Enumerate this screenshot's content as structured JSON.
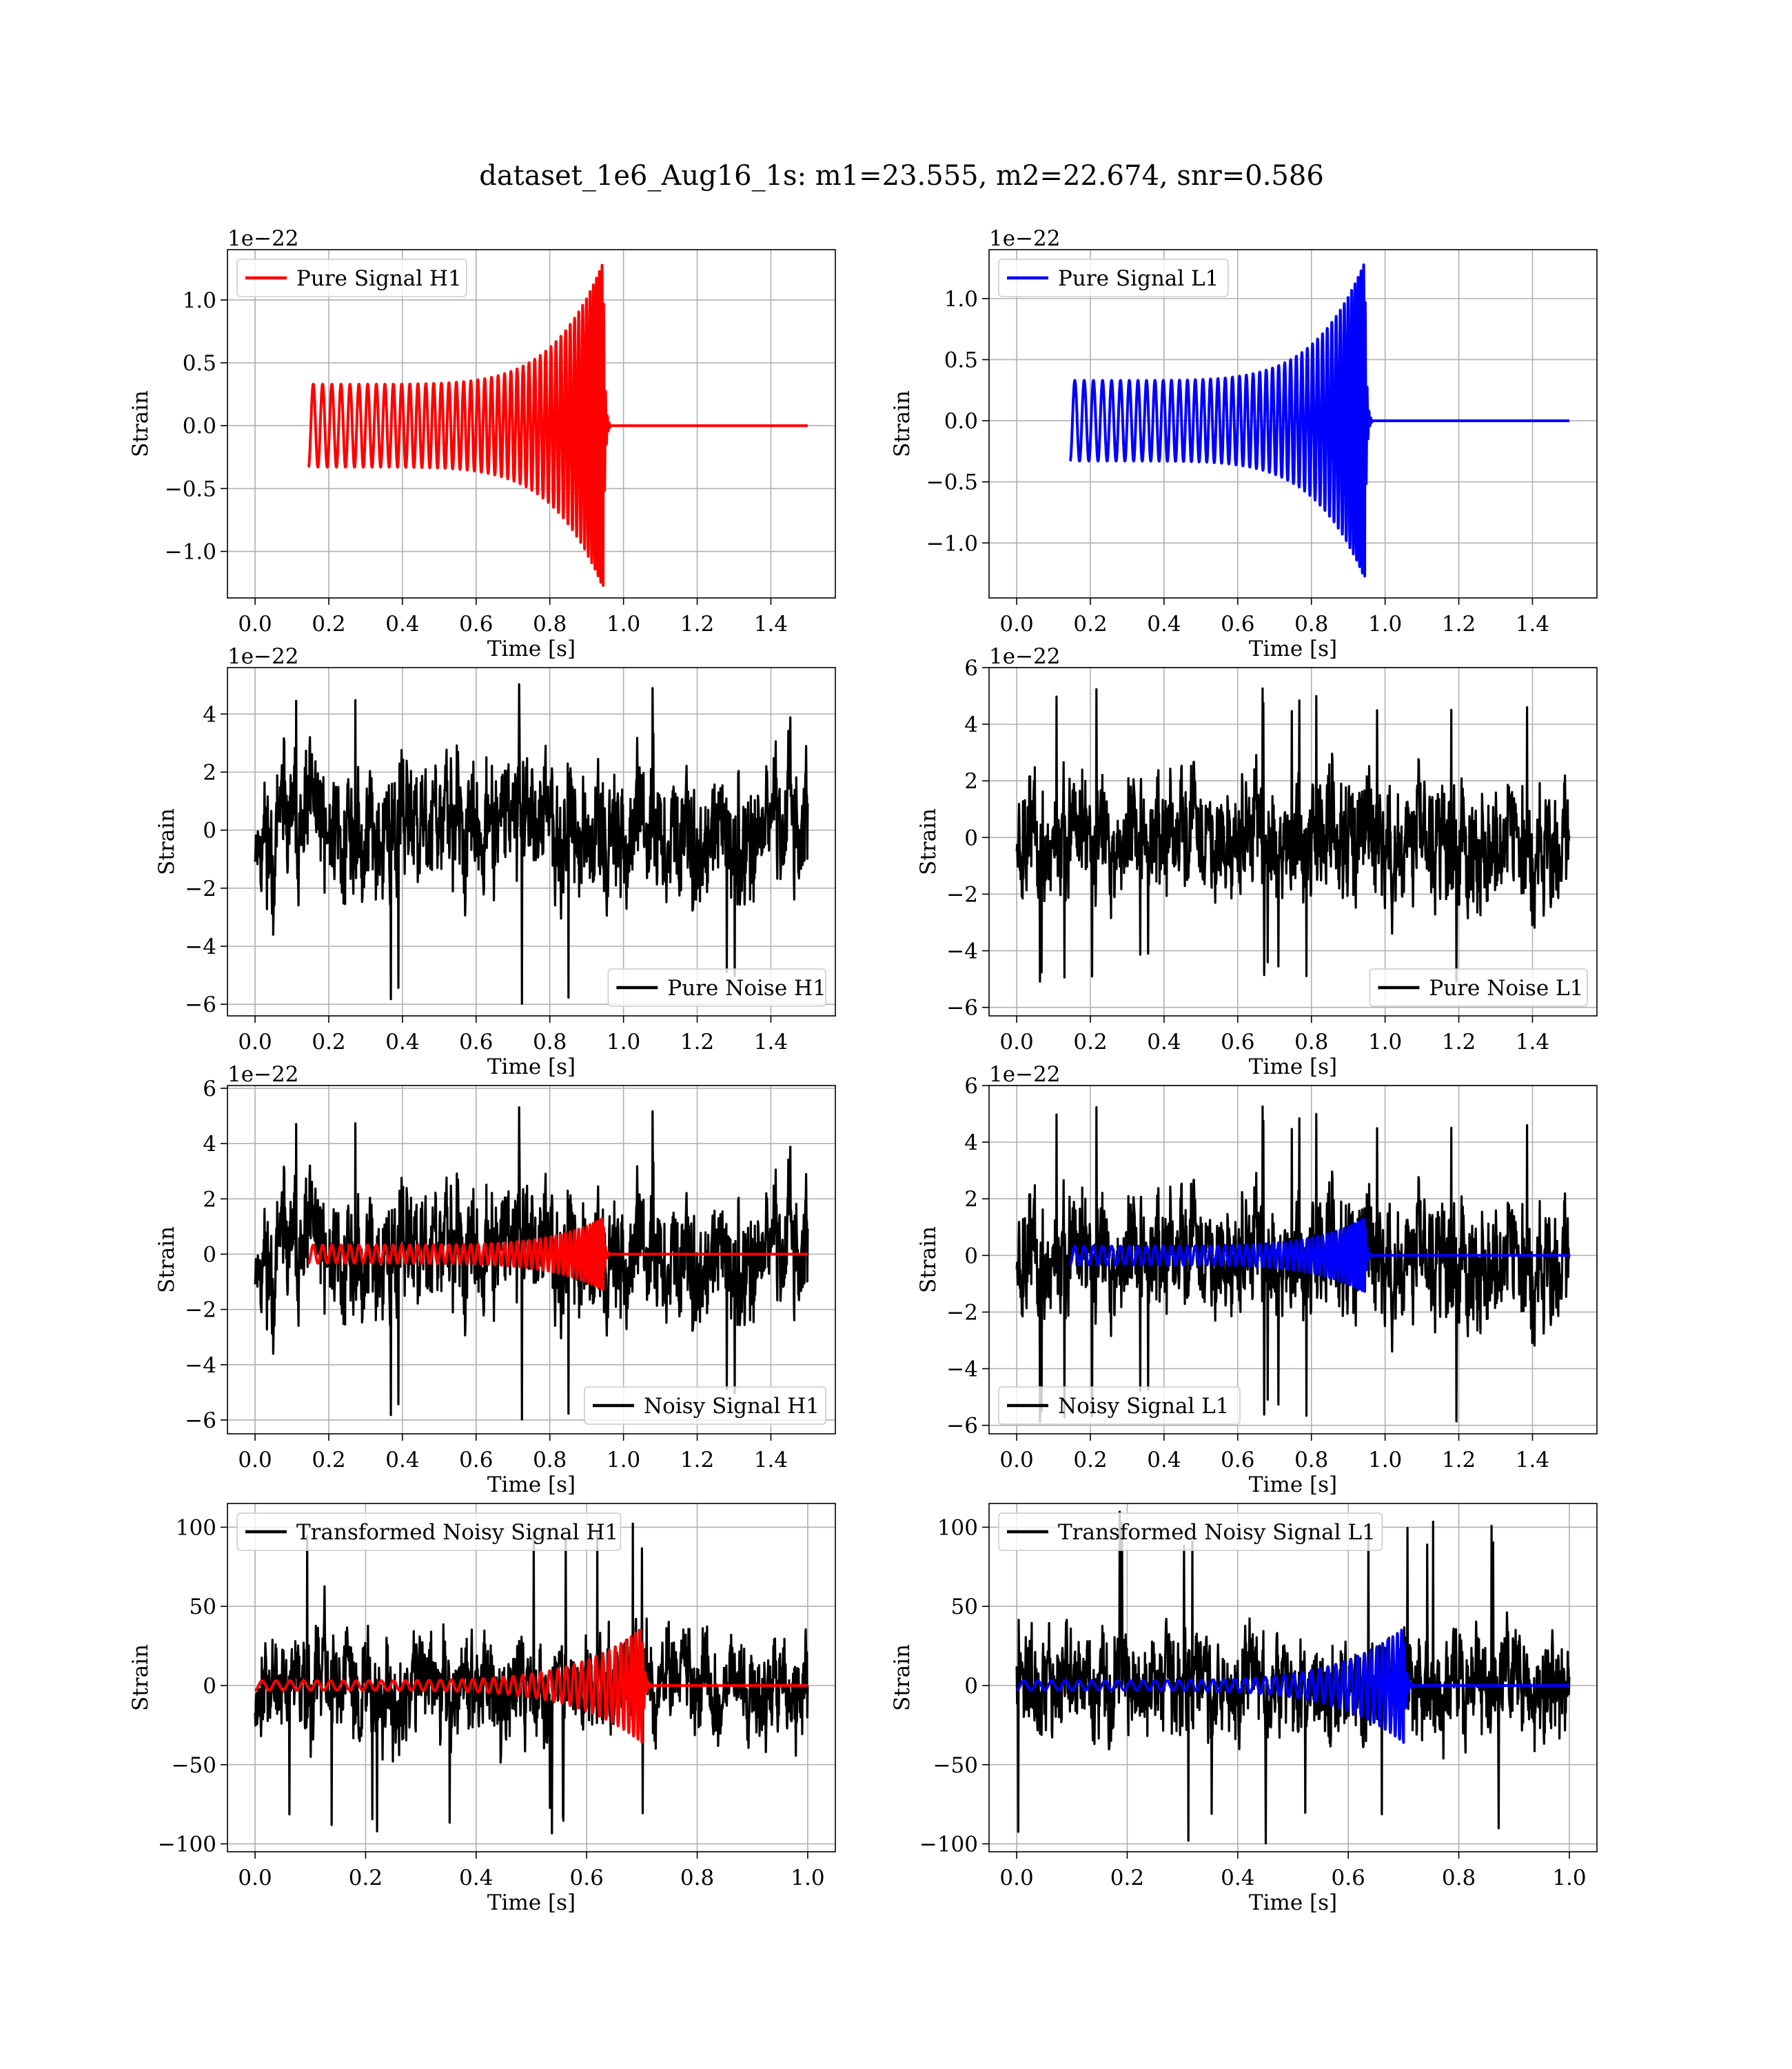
{
  "figure": {
    "title": "dataset_1e6_Aug16_1s: m1=23.555, m2=22.674, snr=0.586"
  },
  "chart_data": [
    {
      "id": "pure-signal-h1",
      "type": "line",
      "xlabel": "Time [s]",
      "ylabel": "Strain",
      "offset_text": "1e−22",
      "xlim": [
        -0.075,
        1.575
      ],
      "ylim": [
        -1.37,
        1.4
      ],
      "xticks": [
        0.0,
        0.2,
        0.4,
        0.6,
        0.8,
        1.0,
        1.2,
        1.4
      ],
      "xtick_labels": [
        "0.0",
        "0.2",
        "0.4",
        "0.6",
        "0.8",
        "1.0",
        "1.2",
        "1.4"
      ],
      "yticks": [
        -1.0,
        -0.5,
        0.0,
        0.5,
        1.0
      ],
      "ytick_labels": [
        "−1.0",
        "−0.5",
        "0.0",
        "0.5",
        "1.0"
      ],
      "grid": true,
      "legend_position": "upper-left",
      "series": [
        {
          "name": "Pure Signal H1",
          "kind": "chirp",
          "color": "#ff0000",
          "t_start": 0.145,
          "t_merge": 0.945,
          "amp_start": 0.33,
          "amp_peak": 1.3,
          "cycles": 46,
          "t_end": 1.5,
          "noise_amp": 0
        }
      ]
    },
    {
      "id": "pure-signal-l1",
      "type": "line",
      "xlabel": "Time [s]",
      "ylabel": "Strain",
      "offset_text": "1e−22",
      "xlim": [
        -0.075,
        1.575
      ],
      "ylim": [
        -1.45,
        1.4
      ],
      "xticks": [
        0.0,
        0.2,
        0.4,
        0.6,
        0.8,
        1.0,
        1.2,
        1.4
      ],
      "xtick_labels": [
        "0.0",
        "0.2",
        "0.4",
        "0.6",
        "0.8",
        "1.0",
        "1.2",
        "1.4"
      ],
      "yticks": [
        -1.0,
        -0.5,
        0.0,
        0.5,
        1.0
      ],
      "ytick_labels": [
        "−1.0",
        "−0.5",
        "0.0",
        "0.5",
        "1.0"
      ],
      "grid": true,
      "legend_position": "upper-left",
      "series": [
        {
          "name": "Pure Signal L1",
          "kind": "chirp",
          "color": "#0000ff",
          "t_start": 0.145,
          "t_merge": 0.945,
          "amp_start": 0.33,
          "amp_peak": 1.3,
          "cycles": 46,
          "t_end": 1.5,
          "noise_amp": 0
        }
      ]
    },
    {
      "id": "pure-noise-h1",
      "type": "line",
      "xlabel": "Time [s]",
      "ylabel": "Strain",
      "offset_text": "1e−22",
      "xlim": [
        -0.075,
        1.575
      ],
      "ylim": [
        -6.4,
        5.6
      ],
      "xticks": [
        0.0,
        0.2,
        0.4,
        0.6,
        0.8,
        1.0,
        1.2,
        1.4
      ],
      "xtick_labels": [
        "0.0",
        "0.2",
        "0.4",
        "0.6",
        "0.8",
        "1.0",
        "1.2",
        "1.4"
      ],
      "yticks": [
        -6,
        -4,
        -2,
        0,
        2,
        4
      ],
      "ytick_labels": [
        "−6",
        "−4",
        "−2",
        "0",
        "2",
        "4"
      ],
      "grid": true,
      "legend_position": "lower-right",
      "series": [
        {
          "name": "Pure Noise H1",
          "kind": "noise",
          "color": "#000000",
          "t_start": 0.0,
          "t_end": 1.5,
          "noise_amp": 2.0,
          "noise_max": 5.3,
          "noise_min": -6.0,
          "seed": 11
        }
      ]
    },
    {
      "id": "pure-noise-l1",
      "type": "line",
      "xlabel": "Time [s]",
      "ylabel": "Strain",
      "offset_text": "1e−22",
      "xlim": [
        -0.075,
        1.575
      ],
      "ylim": [
        -6.3,
        6.0
      ],
      "xticks": [
        0.0,
        0.2,
        0.4,
        0.6,
        0.8,
        1.0,
        1.2,
        1.4
      ],
      "xtick_labels": [
        "0.0",
        "0.2",
        "0.4",
        "0.6",
        "0.8",
        "1.0",
        "1.2",
        "1.4"
      ],
      "yticks": [
        -6,
        -4,
        -2,
        0,
        2,
        4,
        6
      ],
      "ytick_labels": [
        "−6",
        "−4",
        "−2",
        "0",
        "2",
        "4",
        "6"
      ],
      "grid": true,
      "legend_position": "lower-right",
      "series": [
        {
          "name": "Pure Noise L1",
          "kind": "noise",
          "color": "#000000",
          "t_start": 0.0,
          "t_end": 1.5,
          "noise_amp": 2.0,
          "noise_max": 5.5,
          "noise_min": -5.1,
          "seed": 23
        }
      ]
    },
    {
      "id": "noisy-signal-h1",
      "type": "line",
      "xlabel": "Time [s]",
      "ylabel": "Strain",
      "offset_text": "1e−22",
      "xlim": [
        -0.075,
        1.575
      ],
      "ylim": [
        -6.5,
        6.1
      ],
      "xticks": [
        0.0,
        0.2,
        0.4,
        0.6,
        0.8,
        1.0,
        1.2,
        1.4
      ],
      "xtick_labels": [
        "0.0",
        "0.2",
        "0.4",
        "0.6",
        "0.8",
        "1.0",
        "1.2",
        "1.4"
      ],
      "yticks": [
        -6,
        -4,
        -2,
        0,
        2,
        4,
        6
      ],
      "ytick_labels": [
        "−6",
        "−4",
        "−2",
        "0",
        "2",
        "4",
        "6"
      ],
      "grid": true,
      "legend_position": "lower-right",
      "series": [
        {
          "name": "Noisy Signal H1",
          "kind": "noise",
          "color": "#000000",
          "t_start": 0.0,
          "t_end": 1.5,
          "noise_amp": 2.0,
          "noise_max": 5.6,
          "noise_min": -6.0,
          "seed": 11
        },
        {
          "name": "",
          "kind": "chirp",
          "color": "#ff0000",
          "t_start": 0.145,
          "t_merge": 0.945,
          "amp_start": 0.33,
          "amp_peak": 1.3,
          "cycles": 46,
          "t_end": 1.5,
          "noise_amp": 0
        }
      ]
    },
    {
      "id": "noisy-signal-l1",
      "type": "line",
      "xlabel": "Time [s]",
      "ylabel": "Strain",
      "offset_text": "1e−22",
      "xlim": [
        -0.075,
        1.575
      ],
      "ylim": [
        -6.3,
        6.0
      ],
      "xticks": [
        0.0,
        0.2,
        0.4,
        0.6,
        0.8,
        1.0,
        1.2,
        1.4
      ],
      "xtick_labels": [
        "0.0",
        "0.2",
        "0.4",
        "0.6",
        "0.8",
        "1.0",
        "1.2",
        "1.4"
      ],
      "yticks": [
        -6,
        -4,
        -2,
        0,
        2,
        4,
        6
      ],
      "ytick_labels": [
        "−6",
        "−4",
        "−2",
        "0",
        "2",
        "4",
        "6"
      ],
      "grid": true,
      "legend_position": "lower-left",
      "series": [
        {
          "name": "Noisy Signal L1",
          "kind": "noise",
          "color": "#000000",
          "t_start": 0.0,
          "t_end": 1.5,
          "noise_amp": 2.0,
          "noise_max": 5.5,
          "noise_min": -5.9,
          "seed": 23
        },
        {
          "name": "",
          "kind": "chirp",
          "color": "#0000ff",
          "t_start": 0.145,
          "t_merge": 0.945,
          "amp_start": 0.33,
          "amp_peak": 1.3,
          "cycles": 46,
          "t_end": 1.5,
          "noise_amp": 0
        }
      ]
    },
    {
      "id": "transformed-noisy-signal-h1",
      "type": "line",
      "xlabel": "Time [s]",
      "ylabel": "Strain",
      "offset_text": "",
      "xlim": [
        -0.05,
        1.05
      ],
      "ylim": [
        -105,
        115
      ],
      "xticks": [
        0.0,
        0.2,
        0.4,
        0.6,
        0.8,
        1.0
      ],
      "xtick_labels": [
        "0.0",
        "0.2",
        "0.4",
        "0.6",
        "0.8",
        "1.0"
      ],
      "yticks": [
        -100,
        -50,
        0,
        50,
        100
      ],
      "ytick_labels": [
        "−100",
        "−50",
        "0",
        "50",
        "100"
      ],
      "grid": true,
      "legend_position": "upper-left",
      "series": [
        {
          "name": "Transformed Noisy Signal H1",
          "kind": "noise",
          "color": "#000000",
          "t_start": 0.0,
          "t_end": 1.0,
          "noise_amp": 28,
          "noise_max": 105,
          "noise_min": -95,
          "seed": 37
        },
        {
          "name": "",
          "kind": "chirp",
          "color": "#ff0000",
          "t_start": 0.0,
          "t_merge": 0.7,
          "amp_start": 3,
          "amp_peak": 36,
          "cycles": 40,
          "t_end": 1.0,
          "noise_amp": 0
        }
      ]
    },
    {
      "id": "transformed-noisy-signal-l1",
      "type": "line",
      "xlabel": "Time [s]",
      "ylabel": "Strain",
      "offset_text": "",
      "xlim": [
        -0.05,
        1.05
      ],
      "ylim": [
        -105,
        115
      ],
      "xticks": [
        0.0,
        0.2,
        0.4,
        0.6,
        0.8,
        1.0
      ],
      "xtick_labels": [
        "0.0",
        "0.2",
        "0.4",
        "0.6",
        "0.8",
        "1.0"
      ],
      "yticks": [
        -100,
        -50,
        0,
        50,
        100
      ],
      "ytick_labels": [
        "−100",
        "−50",
        "0",
        "50",
        "100"
      ],
      "grid": true,
      "legend_position": "upper-left",
      "series": [
        {
          "name": "Transformed Noisy Signal L1",
          "kind": "noise",
          "color": "#000000",
          "t_start": 0.0,
          "t_end": 1.0,
          "noise_amp": 28,
          "noise_max": 110,
          "noise_min": -100,
          "seed": 41
        },
        {
          "name": "",
          "kind": "chirp",
          "color": "#0000ff",
          "t_start": 0.0,
          "t_merge": 0.7,
          "amp_start": 3,
          "amp_peak": 36,
          "cycles": 40,
          "t_end": 1.0,
          "noise_amp": 0
        }
      ]
    }
  ]
}
